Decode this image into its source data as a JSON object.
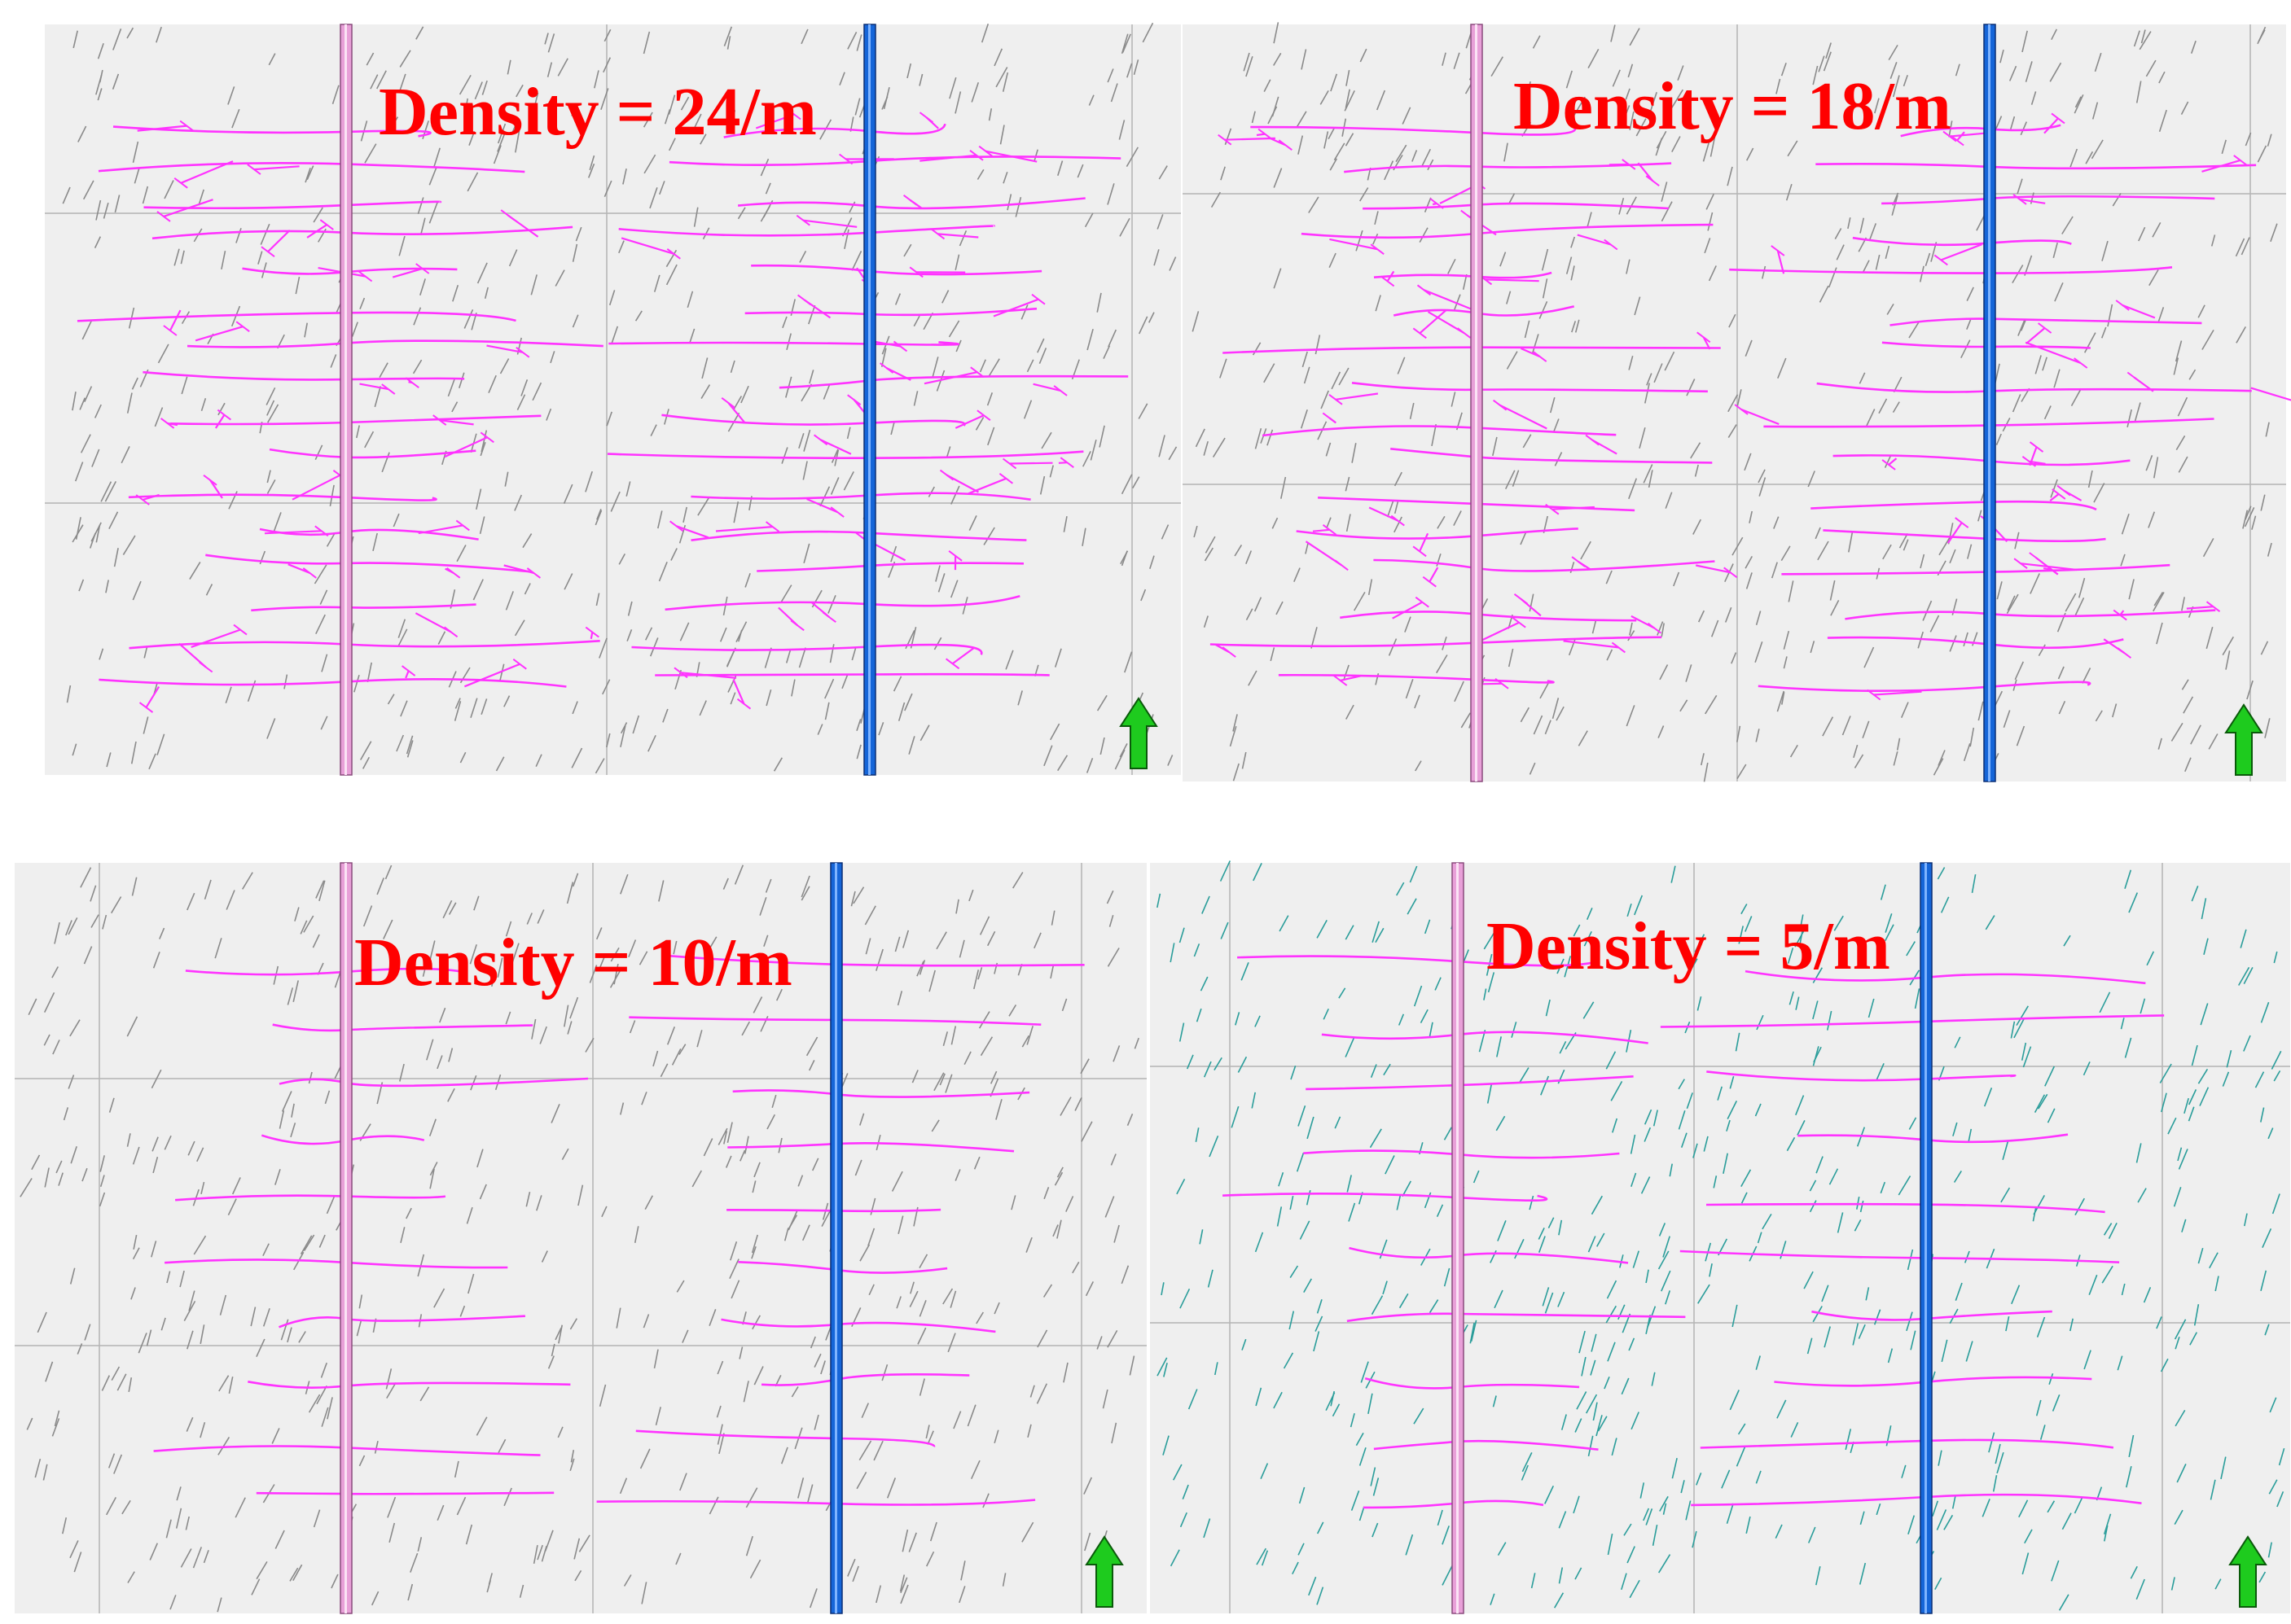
{
  "panels": [
    {
      "id": "p1",
      "title": "Density = 24/m",
      "density_per_m": 24
    },
    {
      "id": "p2",
      "title": "Density = 18/m",
      "density_per_m": 18
    },
    {
      "id": "p3",
      "title": "Density = 10/m",
      "density_per_m": 10
    },
    {
      "id": "p4",
      "title": "Density = 5/m",
      "density_per_m": 5
    }
  ],
  "colors": {
    "background": "#efefef",
    "grid": "#b4b4b4",
    "natural_fractures_gray": "#8a8a8a",
    "natural_fractures_teal": "#2a9d9a",
    "hydraulic_fractures": "#ff33ff",
    "left_well": "#e8a0d8",
    "right_well": "#1565d8",
    "north_arrow": "#1ecb1e",
    "title": "#ff0000"
  },
  "icons": [
    "north-arrow-icon"
  ]
}
